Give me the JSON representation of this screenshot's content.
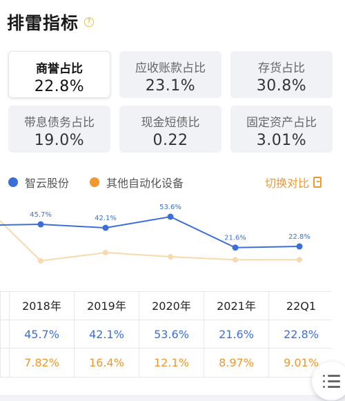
{
  "header": {
    "title": "排雷指标",
    "help_icon": "question-icon",
    "help_mark": "?"
  },
  "metrics": [
    {
      "label": "商誉占比",
      "value": "22.8%",
      "active": true
    },
    {
      "label": "应收账款占比",
      "value": "23.1%",
      "active": false
    },
    {
      "label": "存货占比",
      "value": "30.8%",
      "active": false
    },
    {
      "label": "带息债务占比",
      "value": "19.0%",
      "active": false
    },
    {
      "label": "现金短债比",
      "value": "0.22",
      "active": false
    },
    {
      "label": "固定资产占比",
      "value": "3.01%",
      "active": false
    }
  ],
  "legend": {
    "company": "智云股份",
    "peer": "其他自动化设备",
    "switch_label": "切换对比",
    "switch_icon": "compare-toggle-icon"
  },
  "colors": {
    "company": "#3c6fd6",
    "peer": "#f0972f",
    "peer_line": "#f7d9ae"
  },
  "chart_data": {
    "type": "line",
    "categories": [
      "2018年",
      "2019年",
      "2020年",
      "2021年",
      "22Q1"
    ],
    "series": [
      {
        "name": "智云股份",
        "values": [
          45.7,
          42.1,
          53.6,
          21.6,
          22.8
        ],
        "labels": [
          "45.7%",
          "42.1%",
          "53.6%",
          "21.6%",
          "22.8%"
        ]
      },
      {
        "name": "其他自动化设备",
        "values": [
          7.82,
          16.4,
          12.1,
          8.97,
          9.01
        ]
      }
    ]
  },
  "table": {
    "columns": [
      "2018年",
      "2019年",
      "2020年",
      "2021年",
      "22Q1"
    ],
    "company_row": [
      "45.7%",
      "42.1%",
      "53.6%",
      "21.6%",
      "22.8%"
    ],
    "peer_row": [
      "7.82%",
      "16.4%",
      "12.1%",
      "8.97%",
      "9.01%"
    ]
  },
  "fab": {
    "icon": "list-menu-icon"
  }
}
